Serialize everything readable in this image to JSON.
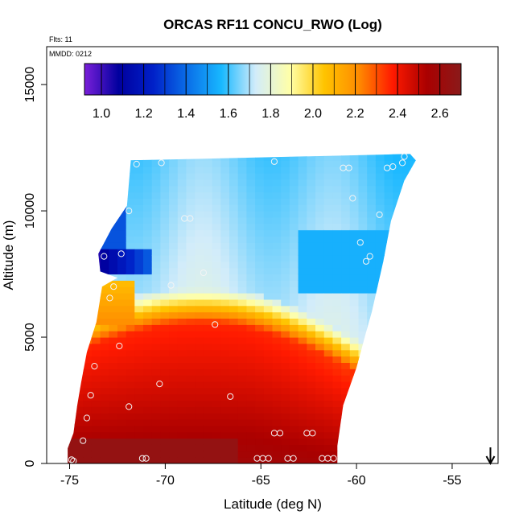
{
  "chart_data": {
    "type": "heatmap",
    "title": "ORCAS RF11 CONCU_RWO (Log)",
    "xlabel": "Latitude (deg N)",
    "ylabel": "Altitude (m)",
    "xlim": [
      -76.2,
      -52.6
    ],
    "ylim": [
      0,
      16500
    ],
    "x_ticks": [
      -75,
      -70,
      -65,
      -60,
      -55
    ],
    "x_tick_labels": [
      "-75",
      "-70",
      "-65",
      "-60",
      "-55"
    ],
    "y_ticks": [
      0,
      5000,
      10000,
      15000
    ],
    "y_tick_labels": [
      "0",
      "5000",
      "10000",
      "15000"
    ],
    "annotations": {
      "flights": "Flts: 11",
      "date": "MMDD: 0212"
    },
    "colorbar": {
      "range": [
        0.92,
        2.7
      ],
      "ticks": [
        1.0,
        1.2,
        1.4,
        1.6,
        1.8,
        2.0,
        2.2,
        2.4,
        2.6
      ],
      "tick_labels": [
        "1.0",
        "1.2",
        "1.4",
        "1.6",
        "1.8",
        "2.0",
        "2.2",
        "2.4",
        "2.6"
      ],
      "colors": [
        "#7a1fd9",
        "#00009e",
        "#0020c8",
        "#0a6ee8",
        "#18b8ff",
        "#d2ecfa",
        "#ffffa8",
        "#ffc400",
        "#ff8c00",
        "#ff1a00",
        "#aa0000",
        "#8a1a1a"
      ]
    },
    "arrow": {
      "x": -53.0,
      "direction": "down"
    },
    "grid": false,
    "notes": "Altitude-latitude curtain of log10 concentration; values increase downward from ~1.6 near 12 km to ~2.6 near surface.",
    "sample_points": [
      {
        "x": -74.9,
        "y": 150
      },
      {
        "x": -74.8,
        "y": 100
      },
      {
        "x": -74.3,
        "y": 900
      },
      {
        "x": -74.1,
        "y": 1800
      },
      {
        "x": -73.9,
        "y": 2700
      },
      {
        "x": -73.7,
        "y": 3850
      },
      {
        "x": -72.9,
        "y": 6550
      },
      {
        "x": -72.7,
        "y": 7000
      },
      {
        "x": -72.4,
        "y": 4650
      },
      {
        "x": -72.3,
        "y": 8300
      },
      {
        "x": -73.2,
        "y": 8200
      },
      {
        "x": -71.9,
        "y": 2250
      },
      {
        "x": -71.9,
        "y": 10000
      },
      {
        "x": -71.5,
        "y": 11850
      },
      {
        "x": -71.2,
        "y": 200
      },
      {
        "x": -71.0,
        "y": 200
      },
      {
        "x": -70.3,
        "y": 3150
      },
      {
        "x": -70.2,
        "y": 11900
      },
      {
        "x": -69.7,
        "y": 7050
      },
      {
        "x": -69.0,
        "y": 9700
      },
      {
        "x": -68.7,
        "y": 9700
      },
      {
        "x": -68.0,
        "y": 7550
      },
      {
        "x": -67.4,
        "y": 5500
      },
      {
        "x": -66.6,
        "y": 2650
      },
      {
        "x": -65.2,
        "y": 200
      },
      {
        "x": -64.9,
        "y": 200
      },
      {
        "x": -64.6,
        "y": 200
      },
      {
        "x": -64.3,
        "y": 1200
      },
      {
        "x": -64.0,
        "y": 1200
      },
      {
        "x": -63.6,
        "y": 200
      },
      {
        "x": -63.3,
        "y": 200
      },
      {
        "x": -62.6,
        "y": 1200
      },
      {
        "x": -62.3,
        "y": 1200
      },
      {
        "x": -61.8,
        "y": 200
      },
      {
        "x": -61.5,
        "y": 200
      },
      {
        "x": -61.2,
        "y": 200
      },
      {
        "x": -60.7,
        "y": 11700
      },
      {
        "x": -60.4,
        "y": 11700
      },
      {
        "x": -60.2,
        "y": 10500
      },
      {
        "x": -59.8,
        "y": 8750
      },
      {
        "x": -59.5,
        "y": 8000
      },
      {
        "x": -59.3,
        "y": 8200
      },
      {
        "x": -58.8,
        "y": 9850
      },
      {
        "x": -58.4,
        "y": 11700
      },
      {
        "x": -58.1,
        "y": 11750
      },
      {
        "x": -57.6,
        "y": 11900
      },
      {
        "x": -57.5,
        "y": 12150
      },
      {
        "x": -64.3,
        "y": 11950
      }
    ]
  }
}
